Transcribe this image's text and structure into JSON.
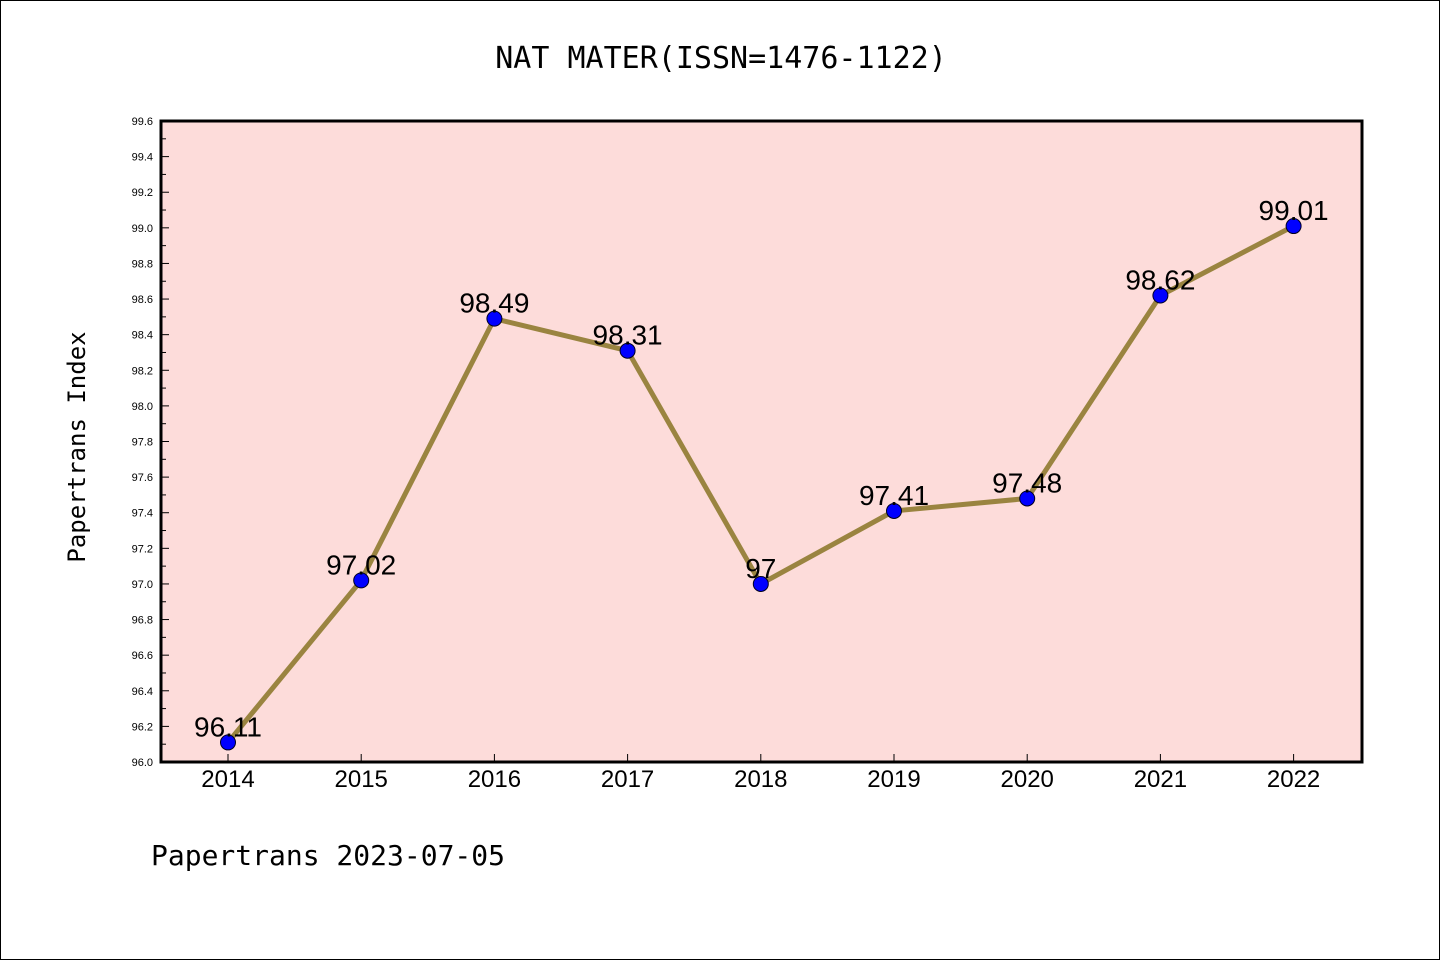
{
  "chart_data": {
    "type": "line",
    "title": "NAT MATER(ISSN=1476-1122)",
    "xlabel": "",
    "ylabel": "Papertrans Index",
    "categories": [
      "2014",
      "2015",
      "2016",
      "2017",
      "2018",
      "2019",
      "2020",
      "2021",
      "2022"
    ],
    "series": [
      {
        "values": [
          96.11,
          97.02,
          98.49,
          98.31,
          97,
          97.41,
          97.48,
          98.62,
          99.01
        ],
        "labels": [
          "96.11",
          "97.02",
          "98.49",
          "98.31",
          "97",
          "97.41",
          "97.48",
          "98.62",
          "99.01"
        ],
        "line_color": "#9a8440",
        "marker_color": "#0000ff"
      }
    ],
    "ylim": [
      96.0,
      99.6
    ],
    "yticks": [
      "96.0",
      "96.2",
      "96.4",
      "96.6",
      "96.8",
      "97.0",
      "97.2",
      "97.4",
      "97.6",
      "97.8",
      "98.0",
      "98.2",
      "98.4",
      "98.6",
      "98.8",
      "99.0",
      "99.2",
      "99.4",
      "99.6"
    ],
    "grid": false,
    "legend": "none",
    "plot_background": "#fddcda"
  },
  "footer": {
    "text": "Papertrans 2023-07-05"
  }
}
